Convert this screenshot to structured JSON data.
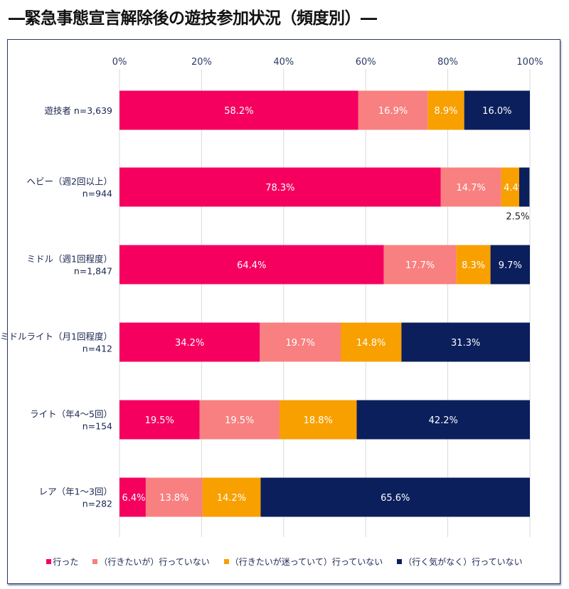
{
  "title": "―緊急事態宣言解除後の遊技参加状況（頻度別）―",
  "chart_data": {
    "type": "bar",
    "orientation": "horizontal",
    "stacked": "percent",
    "xlim": [
      0,
      100
    ],
    "ticks": [
      "0%",
      "20%",
      "40%",
      "60%",
      "80%",
      "100%"
    ],
    "grid": true,
    "legend_position": "bottom",
    "categories": [
      [
        "遊技者 n=3,639"
      ],
      [
        "ヘビー（週2回以上）",
        "n=944"
      ],
      [
        "ミドル（週1回程度）",
        "n=1,847"
      ],
      [
        "ミドルライト（月1回程度）",
        "n=412"
      ],
      [
        "ライト（年4～5回）",
        "n=154"
      ],
      [
        "レア（年1～3回）",
        "n=282"
      ]
    ],
    "series": [
      {
        "name": "行った",
        "color": "#f5005f",
        "values": [
          58.2,
          78.3,
          64.4,
          34.2,
          19.5,
          6.4
        ]
      },
      {
        "name": "（行きたいが）行っていない",
        "color": "#f88080",
        "values": [
          16.9,
          14.7,
          17.7,
          19.7,
          19.5,
          13.8
        ]
      },
      {
        "name": "（行きたいが迷っていて）行っていない",
        "color": "#f7a000",
        "values": [
          8.9,
          4.4,
          8.3,
          14.8,
          18.8,
          14.2
        ]
      },
      {
        "name": "（行く気がなく）行っていない",
        "color": "#0b1f5c",
        "values": [
          16.0,
          2.5,
          9.7,
          31.3,
          42.2,
          65.6
        ]
      }
    ]
  }
}
